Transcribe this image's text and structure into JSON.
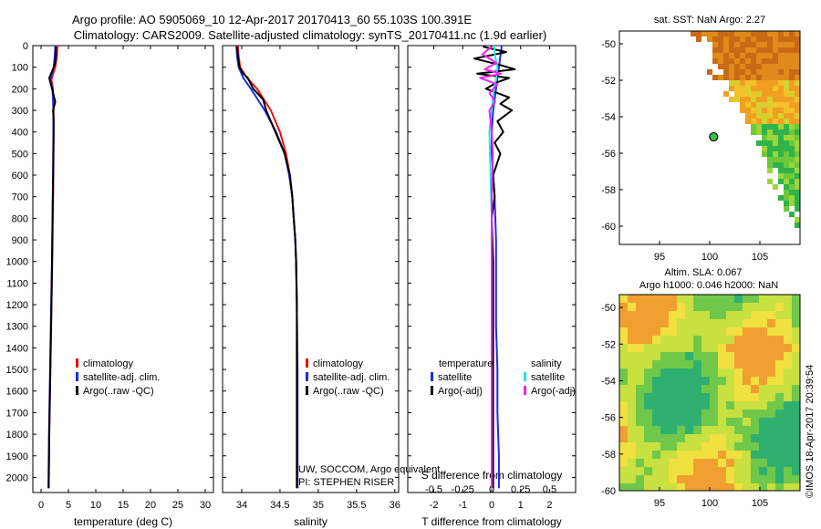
{
  "title_line1": "Argo profile: AO 5905069_10 12-Apr-2017 20170413_60 55.103S 100.391E",
  "title_line2": "Climatology: CARS2009. Satellite-adjusted climatology: synTS_20170411.nc (1.9d earlier)",
  "colors": {
    "red": "#ee1111",
    "blue": "#1a2ee6",
    "black": "#000000",
    "cyan": "#22e6e6",
    "magenta": "#ee22ee"
  },
  "depth_axis": {
    "range": [
      0,
      2070
    ],
    "ticks": [
      0,
      100,
      200,
      300,
      400,
      500,
      600,
      700,
      800,
      900,
      1000,
      1100,
      1200,
      1300,
      1400,
      1500,
      1600,
      1700,
      1800,
      1900,
      2000
    ],
    "tick_labels": [
      "0",
      "100",
      "200",
      "300",
      "400",
      "500",
      "600",
      "700",
      "800",
      "900",
      "1000",
      "1100",
      "1200",
      "1300",
      "1400",
      "1500",
      "1600",
      "1700",
      "1800",
      "1900",
      "2000"
    ]
  },
  "chart_data": [
    {
      "type": "line",
      "name": "temperature-profile",
      "xlabel": "temperature (deg C)",
      "xlim": [
        -1.5,
        31.5
      ],
      "xticks": [
        0,
        5,
        10,
        15,
        20,
        25,
        30
      ],
      "xtick_labels": [
        "0",
        "5",
        "10",
        "15",
        "20",
        "25",
        "30"
      ],
      "ylabel": "depth",
      "legend": [
        "climatology",
        "satellite-adj. clim.",
        "Argo(..raw -QC)"
      ],
      "series": [
        {
          "name": "climatology",
          "color": "red",
          "y": [
            0,
            50,
            100,
            140,
            160,
            200,
            300,
            400,
            600,
            800,
            1000,
            1200,
            1500,
            1800,
            2050
          ],
          "x": [
            3.0,
            2.9,
            2.6,
            2.1,
            1.9,
            2.2,
            2.3,
            2.3,
            2.25,
            2.15,
            2.05,
            1.9,
            1.7,
            1.5,
            1.4
          ]
        },
        {
          "name": "satellite-adj. clim.",
          "color": "blue",
          "y": [
            0,
            50,
            100,
            140,
            160,
            200,
            300,
            400,
            600,
            800,
            1000,
            1200,
            1500,
            1800,
            2050
          ],
          "x": [
            2.6,
            2.5,
            2.3,
            1.9,
            1.7,
            2.1,
            2.25,
            2.25,
            2.2,
            2.1,
            2.0,
            1.85,
            1.65,
            1.45,
            1.35
          ]
        },
        {
          "name": "Argo(..raw -QC)",
          "color": "black",
          "y": [
            5,
            40,
            80,
            120,
            150,
            170,
            210,
            260,
            300,
            350,
            400,
            600,
            800,
            1000,
            1200,
            1500,
            1800,
            2050
          ],
          "x": [
            2.7,
            2.7,
            2.6,
            2.0,
            1.5,
            1.7,
            2.1,
            2.6,
            2.2,
            2.3,
            2.3,
            2.2,
            2.1,
            2.0,
            1.9,
            1.7,
            1.5,
            1.4
          ]
        }
      ]
    },
    {
      "type": "line",
      "name": "salinity-profile",
      "xlabel": "salinity",
      "xlim": [
        33.75,
        36.05
      ],
      "xticks": [
        34,
        34.5,
        35,
        35.5,
        36
      ],
      "xtick_labels": [
        "34",
        "34.5",
        "35",
        "35.5",
        "36"
      ],
      "legend": [
        "climatology",
        "satellite-adj. clim.",
        "Argo(..raw -QC)"
      ],
      "annotations": [
        "UW, SOCCOM, Argo equivalent",
        "PI: STEPHEN RISER"
      ],
      "series": [
        {
          "name": "climatology",
          "color": "red",
          "y": [
            0,
            50,
            100,
            150,
            200,
            300,
            400,
            500,
            600,
            700,
            800,
            900,
            1000,
            1200,
            1500,
            1800,
            2050
          ],
          "x": [
            33.95,
            33.96,
            33.98,
            34.07,
            34.2,
            34.38,
            34.5,
            34.58,
            34.63,
            34.66,
            34.68,
            34.7,
            34.71,
            34.72,
            34.72,
            34.72,
            34.72
          ]
        },
        {
          "name": "satellite-adj. clim.",
          "color": "blue",
          "y": [
            0,
            50,
            100,
            150,
            200,
            300,
            400,
            500,
            600,
            700,
            800,
            900,
            1000,
            1200,
            1500,
            1800,
            2050
          ],
          "x": [
            33.93,
            33.94,
            33.96,
            34.02,
            34.12,
            34.3,
            34.45,
            34.56,
            34.62,
            34.66,
            34.68,
            34.7,
            34.71,
            34.72,
            34.73,
            34.73,
            34.73
          ]
        },
        {
          "name": "Argo(..raw -QC)",
          "color": "black",
          "y": [
            5,
            50,
            100,
            130,
            150,
            200,
            250,
            300,
            400,
            500,
            600,
            700,
            800,
            900,
            1000,
            1200,
            1500,
            1800,
            2050
          ],
          "x": [
            33.94,
            33.95,
            33.97,
            34.02,
            34.08,
            34.15,
            34.28,
            34.32,
            34.44,
            34.56,
            34.63,
            34.66,
            34.68,
            34.7,
            34.71,
            34.72,
            34.72,
            34.72,
            34.72
          ]
        }
      ]
    },
    {
      "type": "line",
      "name": "difference-profile",
      "xlabel": "T difference from climatology",
      "xlim": [
        -2.9,
        2.9
      ],
      "xticks": [
        -2,
        -1,
        0,
        1,
        2
      ],
      "xtick_labels": [
        "-2",
        "-1",
        "0",
        "1",
        "2"
      ],
      "top_xlabel": "S difference from climatology",
      "top_xlim": [
        -0.725,
        0.725
      ],
      "top_xticks": [
        -0.5,
        -0.25,
        0,
        0.25,
        0.5
      ],
      "top_xtick_labels": [
        "-0.5",
        "-0.25",
        "0",
        "0.25",
        "0.5"
      ],
      "legend_groups": [
        {
          "title": "temperature",
          "entries": [
            "satellite",
            "Argo(-adj)"
          ]
        },
        {
          "title": "salinity",
          "entries": [
            "satellite",
            "Argo(-adj)"
          ]
        }
      ],
      "series": [
        {
          "name": "temperature satellite",
          "color": "blue",
          "axis": "T",
          "y": [
            0,
            50,
            100,
            150,
            200,
            300,
            400,
            500,
            700,
            900,
            1100,
            1300,
            1500,
            1700,
            1900,
            2050
          ],
          "x": [
            0.35,
            0.3,
            0.25,
            0.2,
            0.15,
            0.05,
            0.0,
            0.0,
            0.1,
            0.15,
            0.15,
            0.15,
            0.2,
            0.2,
            0.25,
            0.25
          ]
        },
        {
          "name": "temperature Argo(-adj)",
          "color": "black",
          "axis": "T",
          "y": [
            5,
            30,
            60,
            90,
            110,
            130,
            150,
            170,
            200,
            240,
            270,
            300,
            350,
            400,
            450,
            500,
            600,
            700,
            800,
            1000,
            1200,
            1500,
            1800,
            2050
          ],
          "x": [
            -0.3,
            0.5,
            -0.6,
            0.3,
            0.8,
            -0.5,
            0.6,
            0.2,
            -0.2,
            0.6,
            0.3,
            0.7,
            0.2,
            0.4,
            0.1,
            0.3,
            0.05,
            0.1,
            0.0,
            0.05,
            0.05,
            0.05,
            0.05,
            0.05
          ]
        },
        {
          "name": "salinity satellite",
          "color": "cyan",
          "axis": "S",
          "y": [
            0,
            50,
            100,
            150,
            200,
            300,
            400,
            600,
            800,
            1000,
            1300,
            1600,
            1900,
            2050
          ],
          "x": [
            0.02,
            0.03,
            0.05,
            0.04,
            0.02,
            0.0,
            -0.02,
            -0.01,
            0.0,
            0.0,
            0.0,
            0.0,
            0.0,
            0.0
          ]
        },
        {
          "name": "salinity Argo(-adj)",
          "color": "magenta",
          "axis": "S",
          "y": [
            5,
            40,
            80,
            110,
            130,
            150,
            180,
            220,
            260,
            300,
            400,
            500,
            700,
            900,
            1200,
            1500,
            1800,
            2050
          ],
          "x": [
            0.0,
            -0.08,
            0.04,
            -0.06,
            0.08,
            -0.1,
            0.05,
            -0.02,
            0.03,
            -0.02,
            0.0,
            0.01,
            0.0,
            0.0,
            0.0,
            0.0,
            0.0,
            0.0
          ]
        }
      ]
    },
    {
      "type": "heatmap",
      "name": "sat-sst-map",
      "title": "sat. SST: NaN Argo: 2.27",
      "xlim": [
        91,
        109
      ],
      "ylim": [
        -61,
        -49.3
      ],
      "xticks": [
        95,
        100,
        105
      ],
      "xtick_labels": [
        "95",
        "100",
        "105"
      ],
      "yticks": [
        -50,
        -52,
        -54,
        -56,
        -58,
        -60
      ],
      "ytick_labels": [
        "-50",
        "-52",
        "-54",
        "-56",
        "-58",
        "-60"
      ],
      "argo_position": {
        "lon": 100.391,
        "lat": -55.103
      }
    },
    {
      "type": "heatmap",
      "name": "altimetry-sla-map",
      "title_line1": "Altim. SLA: 0.067",
      "title_line2": "Argo h1000: 0.046 h2000: NaN",
      "xlim": [
        91,
        109
      ],
      "ylim": [
        -60,
        -49.3
      ],
      "xticks": [
        95,
        100,
        105
      ],
      "xtick_labels": [
        "95",
        "100",
        "105"
      ],
      "yticks": [
        -50,
        -52,
        -54,
        -56,
        -58,
        -60
      ],
      "ytick_labels": [
        "-50",
        "-52",
        "-54",
        "-56",
        "-58",
        "-60"
      ]
    }
  ],
  "credit": "©IMOS 18-Apr-2017 20:39:54"
}
